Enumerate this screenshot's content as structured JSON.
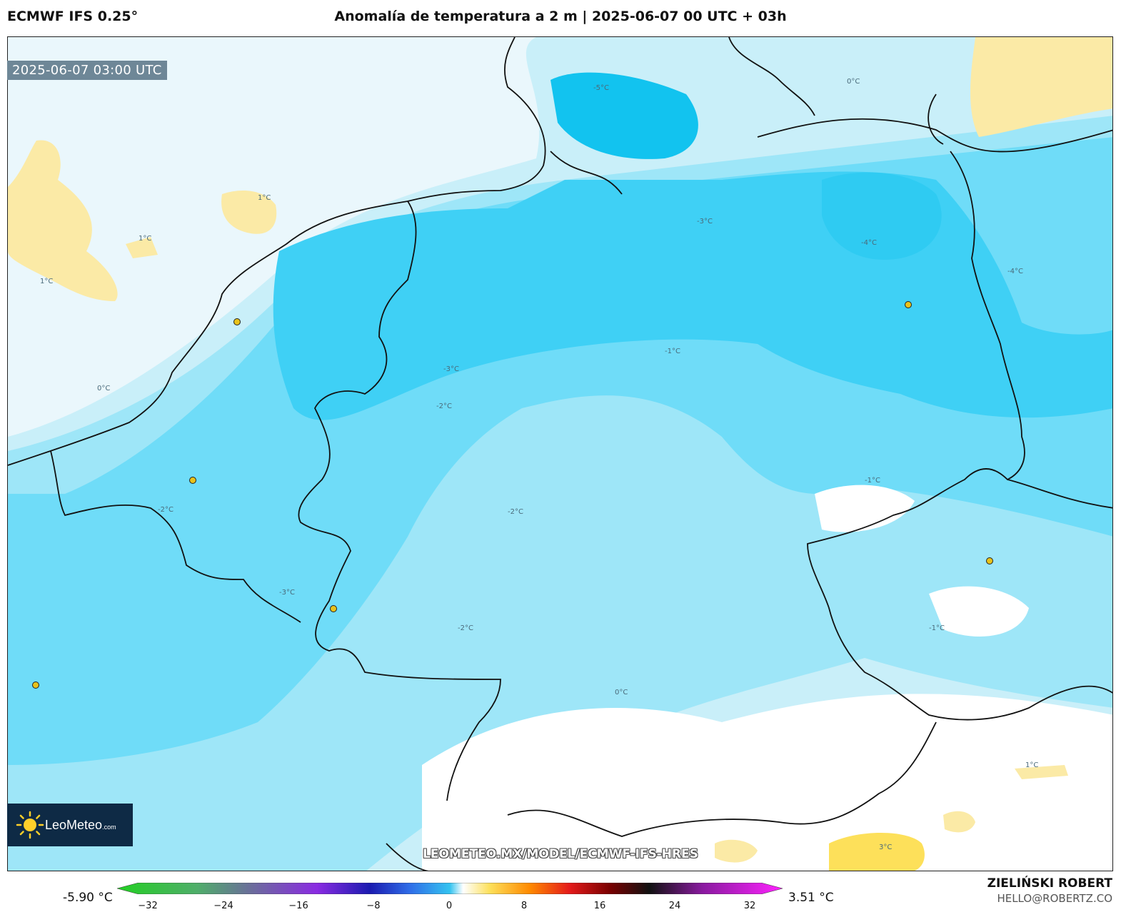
{
  "header": {
    "model": "ECMWF IFS 0.25°",
    "title": "Anomalía de temperatura a 2 m | 2025-06-07 00 UTC + 03h"
  },
  "map": {
    "valid_time": "2025-06-07 03:00 UTC",
    "watermark": "LEOMETEO.MX/MODEL/ECMWF-IFS-HRES",
    "logo": {
      "name": "LeoMeteo",
      "suffix": ".com",
      "icon": "sun-icon"
    },
    "contour_labels": [
      "-5°C",
      "-4°C",
      "-3°C",
      "-2°C",
      "-1°C",
      "0°C",
      "1°C",
      "3°C"
    ],
    "colors": {
      "minus5": "#12c3ef",
      "minus4": "#3fd0f5",
      "minus3": "#6fdcf8",
      "minus2": "#9ee6f8",
      "minus1": "#c9eff9",
      "zero": "#ffffff",
      "plus1": "#fbeaa6",
      "plus3": "#fde05a",
      "coast": "#111111",
      "city": "#e8c21a"
    }
  },
  "colorbar": {
    "min_label": "-5.90 °C",
    "max_label": "3.51 °C",
    "ticks": [
      "−32",
      "−24",
      "−16",
      "−8",
      "0",
      "8",
      "16",
      "24",
      "32"
    ],
    "range": [
      -32,
      32
    ]
  },
  "author": {
    "name": "ZIELIŃSKI ROBERT",
    "email": "HELLO@ROBERTZ.CO"
  }
}
